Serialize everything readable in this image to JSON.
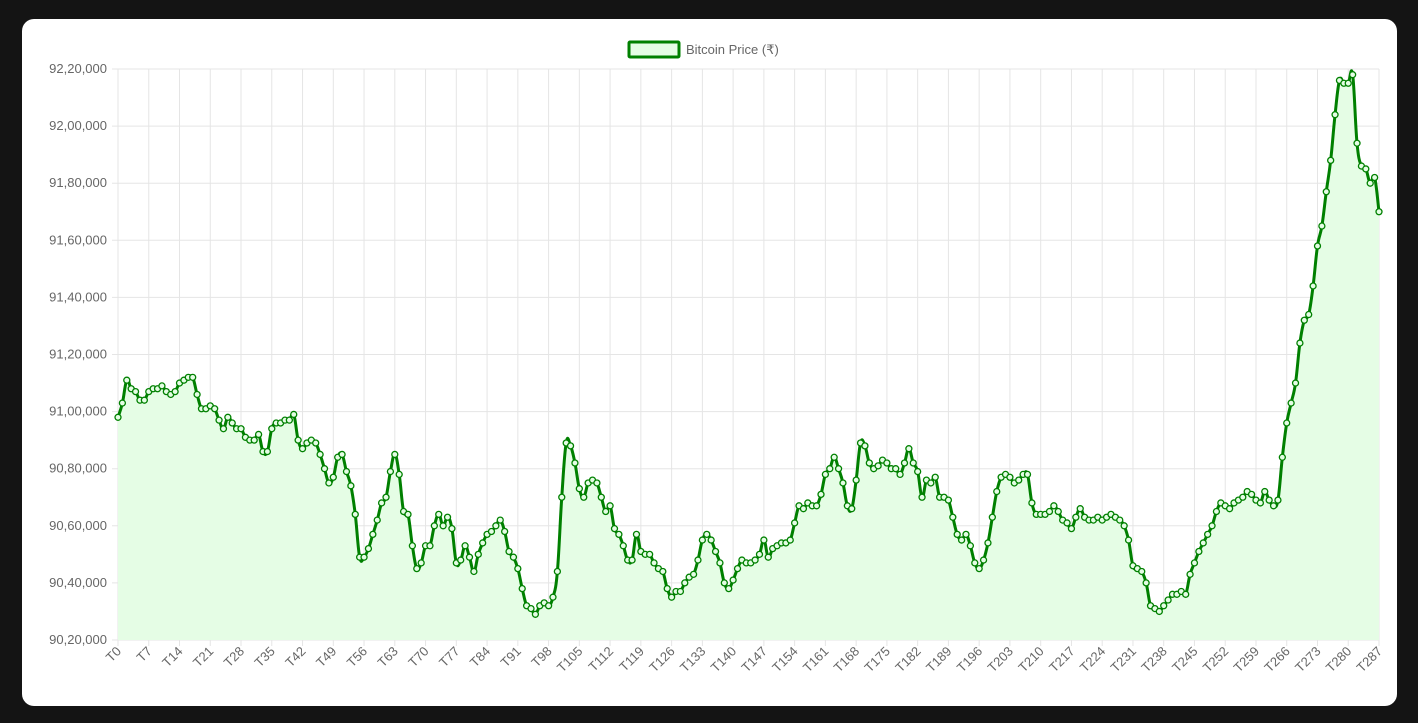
{
  "chart_data": {
    "type": "line",
    "title": "",
    "xlabel": "",
    "ylabel": "",
    "fill": true,
    "grid": true,
    "legend_position": "top",
    "ylim": [
      9020000,
      9220000
    ],
    "y_ticks": [
      9020000,
      9040000,
      9060000,
      9080000,
      9100000,
      9120000,
      9140000,
      9160000,
      9180000,
      9200000,
      9220000
    ],
    "y_tick_labels": [
      "90,20,000",
      "90,40,000",
      "90,60,000",
      "90,80,000",
      "91,00,000",
      "91,20,000",
      "91,40,000",
      "91,60,000",
      "91,80,000",
      "92,00,000",
      "92,20,000"
    ],
    "x_label_step": 7,
    "series": [
      {
        "name": "Bitcoin Price (₹)",
        "color": "#008000",
        "fill_color": "#e5fde5",
        "values": [
          9098000,
          9103000,
          9111000,
          9108000,
          9107000,
          9104000,
          9104000,
          9107000,
          9108000,
          9108000,
          9109000,
          9107000,
          9106000,
          9107000,
          9110000,
          9111000,
          9112000,
          9112000,
          9106000,
          9101000,
          9101000,
          9102000,
          9101000,
          9097000,
          9094000,
          9098000,
          9096000,
          9094000,
          9094000,
          9091000,
          9090000,
          9090000,
          9092000,
          9086000,
          9086000,
          9094000,
          9096000,
          9096000,
          9097000,
          9097000,
          9099000,
          9090000,
          9087000,
          9089000,
          9090000,
          9089000,
          9085000,
          9080000,
          9075000,
          9077000,
          9084000,
          9085000,
          9079000,
          9074000,
          9064000,
          9049000,
          9049000,
          9052000,
          9057000,
          9062000,
          9068000,
          9070000,
          9079000,
          9085000,
          9078000,
          9065000,
          9064000,
          9053000,
          9045000,
          9047000,
          9053000,
          9053000,
          9060000,
          9064000,
          9060000,
          9063000,
          9059000,
          9047000,
          9048000,
          9053000,
          9049000,
          9044000,
          9050000,
          9054000,
          9057000,
          9058000,
          9060000,
          9062000,
          9058000,
          9051000,
          9049000,
          9045000,
          9038000,
          9032000,
          9031000,
          9029000,
          9032000,
          9033000,
          9032000,
          9035000,
          9044000,
          9070000,
          9089000,
          9088000,
          9082000,
          9073000,
          9070000,
          9075000,
          9076000,
          9075000,
          9070000,
          9065000,
          9067000,
          9059000,
          9057000,
          9053000,
          9048000,
          9048000,
          9057000,
          9051000,
          9050000,
          9050000,
          9047000,
          9045000,
          9044000,
          9038000,
          9035000,
          9037000,
          9037000,
          9040000,
          9042000,
          9043000,
          9048000,
          9055000,
          9057000,
          9055000,
          9051000,
          9047000,
          9040000,
          9038000,
          9041000,
          9045000,
          9048000,
          9047000,
          9047000,
          9048000,
          9050000,
          9055000,
          9049000,
          9052000,
          9053000,
          9054000,
          9054000,
          9055000,
          9061000,
          9067000,
          9066000,
          9068000,
          9067000,
          9067000,
          9071000,
          9078000,
          9080000,
          9084000,
          9080000,
          9075000,
          9067000,
          9066000,
          9076000,
          9089000,
          9088000,
          9082000,
          9080000,
          9081000,
          9083000,
          9082000,
          9080000,
          9080000,
          9078000,
          9082000,
          9087000,
          9082000,
          9079000,
          9070000,
          9076000,
          9075000,
          9077000,
          9070000,
          9070000,
          9069000,
          9063000,
          9057000,
          9055000,
          9057000,
          9053000,
          9047000,
          9045000,
          9048000,
          9054000,
          9063000,
          9072000,
          9077000,
          9078000,
          9077000,
          9075000,
          9076000,
          9078000,
          9078000,
          9068000,
          9064000,
          9064000,
          9064000,
          9065000,
          9067000,
          9065000,
          9062000,
          9061000,
          9059000,
          9063000,
          9066000,
          9063000,
          9062000,
          9062000,
          9063000,
          9062000,
          9063000,
          9064000,
          9063000,
          9062000,
          9060000,
          9055000,
          9046000,
          9045000,
          9044000,
          9040000,
          9032000,
          9031000,
          9030000,
          9032000,
          9034000,
          9036000,
          9036000,
          9037000,
          9036000,
          9043000,
          9047000,
          9051000,
          9054000,
          9057000,
          9060000,
          9065000,
          9068000,
          9067000,
          9066000,
          9068000,
          9069000,
          9070000,
          9072000,
          9071000,
          9069000,
          9068000,
          9072000,
          9069000,
          9067000,
          9069000,
          9084000,
          9096000,
          9103000,
          9110000,
          9124000,
          9132000,
          9134000,
          9144000,
          9158000,
          9165000,
          9177000,
          9188000,
          9204000,
          9216000,
          9215000,
          9215000,
          9218000,
          9194000,
          9186000,
          9185000,
          9180000,
          9182000,
          9170000
        ]
      }
    ]
  }
}
